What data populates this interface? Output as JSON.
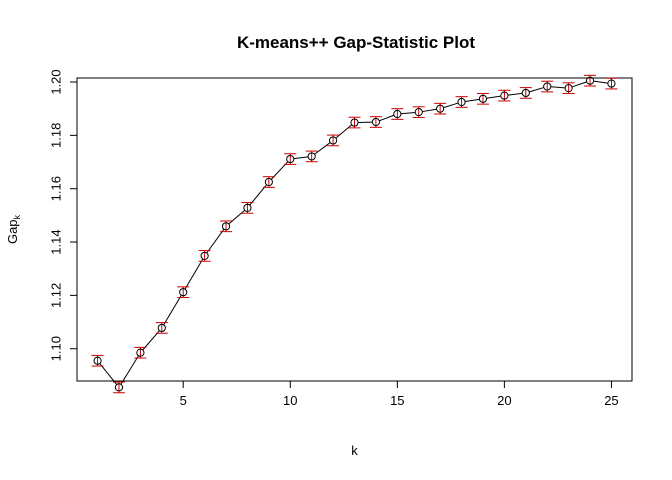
{
  "chart_data": {
    "type": "line",
    "title": "K-means++ Gap-Statistic Plot",
    "xlabel": "k",
    "ylabel_main": "Gap",
    "ylabel_sub": "k",
    "xlim": [
      0.04,
      25.96
    ],
    "ylim": [
      1.0879,
      1.2015
    ],
    "xticks": [
      5,
      10,
      15,
      20,
      25
    ],
    "yticks": [
      1.1,
      1.12,
      1.14,
      1.16,
      1.18,
      1.2
    ],
    "ytick_labels": [
      "1.10",
      "1.12",
      "1.14",
      "1.16",
      "1.18",
      "1.20"
    ],
    "grid": false,
    "legend": "none",
    "line_color": "#000000",
    "point_color": "#000000",
    "errorbar_color": "#cc0000",
    "x": [
      1,
      2,
      3,
      4,
      5,
      6,
      7,
      8,
      9,
      10,
      11,
      12,
      13,
      14,
      15,
      16,
      17,
      18,
      19,
      20,
      21,
      22,
      23,
      24,
      25
    ],
    "gap": [
      1.0955,
      1.0855,
      1.0985,
      1.1078,
      1.1212,
      1.1348,
      1.1459,
      1.1528,
      1.1625,
      1.1711,
      1.1721,
      1.1781,
      1.1848,
      1.185,
      1.188,
      1.1887,
      1.19,
      1.1925,
      1.1937,
      1.1949,
      1.1959,
      1.1983,
      1.1977,
      1.2005,
      1.1994
    ],
    "se": [
      0.002,
      0.002,
      0.002,
      0.002,
      0.002,
      0.002,
      0.002,
      0.002,
      0.002,
      0.002,
      0.002,
      0.002,
      0.002,
      0.002,
      0.002,
      0.002,
      0.002,
      0.002,
      0.002,
      0.002,
      0.002,
      0.002,
      0.002,
      0.002,
      0.002
    ]
  }
}
